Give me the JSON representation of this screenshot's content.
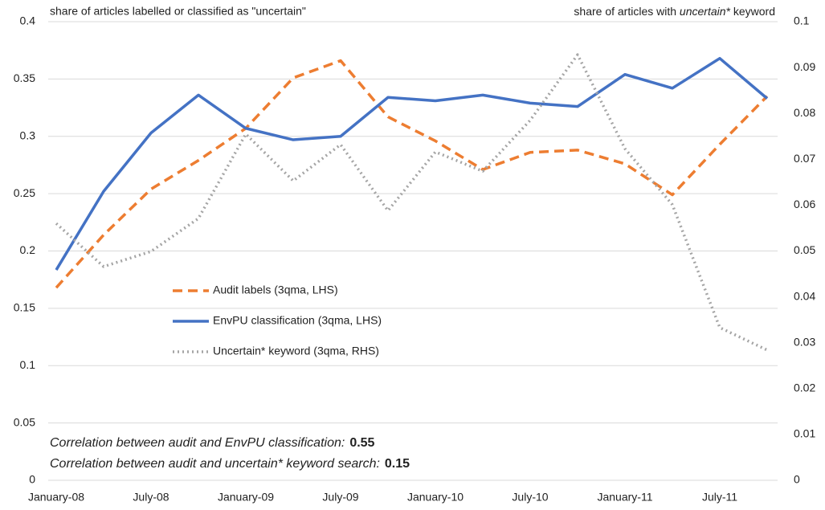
{
  "chart_data": {
    "type": "line",
    "ylabel": "share of articles labelled or classified as \"uncertain\"",
    "y2label_parts": [
      "share of articles with ",
      "uncertain*",
      " keyword"
    ],
    "categories": [
      "January-08",
      null,
      "July-08",
      null,
      "January-09",
      null,
      "July-09",
      null,
      "January-10",
      null,
      "July-10",
      null,
      "January-11",
      null,
      "July-11",
      null
    ],
    "series": [
      {
        "name": "Audit labels (3qma, LHS)",
        "color": "#ed7d31",
        "dash": "12 7",
        "values": [
          0.168,
          0.214,
          0.254,
          0.279,
          0.307,
          0.351,
          0.366,
          0.317,
          0.296,
          0.271,
          0.286,
          0.288,
          0.276,
          0.249,
          0.293,
          0.335
        ]
      },
      {
        "name": "EnvPU classification (3qma, LHS)",
        "color": "#4472c4",
        "dash": "none",
        "values": [
          0.1835,
          0.252,
          0.303,
          0.336,
          0.307,
          0.297,
          0.3,
          0.334,
          0.331,
          0.336,
          0.329,
          0.326,
          0.354,
          0.342,
          0.368,
          0.333
        ]
      },
      {
        "name": "Uncertain* keyword (3qma, RHS)",
        "color": "#a5a5a5",
        "dash": "2 4",
        "axis": "y2",
        "values": [
          0.056,
          0.0466,
          0.0499,
          0.0571,
          0.0755,
          0.0653,
          0.0732,
          0.0588,
          0.0716,
          0.0674,
          0.0785,
          0.0928,
          0.0723,
          0.0601,
          0.0333,
          0.0284
        ]
      }
    ],
    "ylim": [
      0,
      0.4
    ],
    "yticks": [
      0,
      0.05,
      0.1,
      0.15,
      0.2,
      0.25,
      0.3,
      0.35,
      0.4
    ],
    "y2lim": [
      0,
      0.1
    ],
    "y2ticks": [
      0,
      0.01,
      0.02,
      0.03,
      0.04,
      0.05,
      0.06,
      0.07,
      0.08,
      0.09,
      0.1
    ],
    "grid": true,
    "legend": "center-left",
    "annotations": [
      {
        "text": "Correlation between audit and EnvPU classification:",
        "value": 0.55
      },
      {
        "text": "Correlation between audit and uncertain* keyword search:",
        "value": 0.15
      }
    ]
  }
}
